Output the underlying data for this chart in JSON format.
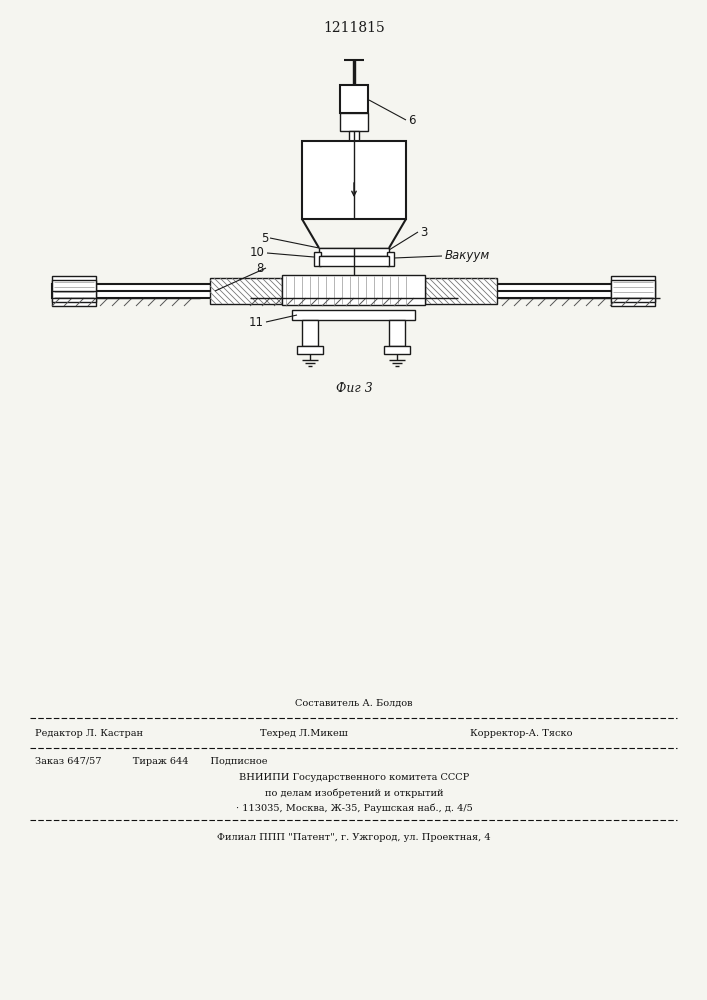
{
  "title": "1211815",
  "fig_label": "Фиг 3",
  "label_6": "6",
  "label_5": "5",
  "label_3": "3",
  "label_10": "10",
  "label_8": "8",
  "label_11": "11",
  "label_vakuum": "Вакуум",
  "line_color": "#1a1a1a",
  "bg_color": "#f5f5f0",
  "footer_line1_center": "Составитель А. Болдов",
  "footer_line1_left": "Редактор Л. Кастран",
  "footer_line2_center": "Техред Л.Микеш",
  "footer_line2_right": "Корректор-А. Тяско",
  "footer_line3": "Заказ 647/57          Тираж 644       Подписное",
  "footer_line4": "ВНИИПИ Государственного комитета СССР",
  "footer_line5": "по делам изобретений и открытий",
  "footer_line6": "· 113035, Москва, Ж-35, Раушская наб., д. 4/5",
  "footer_line7": "Филиал ППП \"Патент\", г. Ужгород, ул. Проектная, 4"
}
